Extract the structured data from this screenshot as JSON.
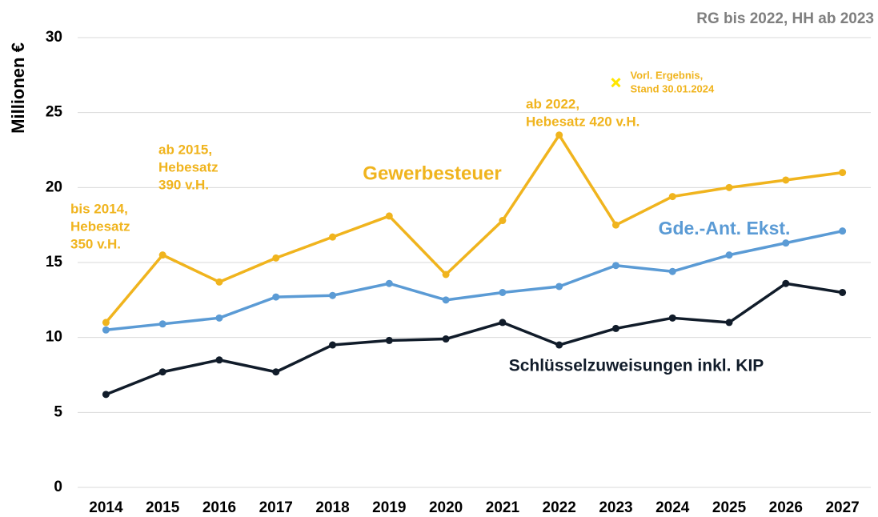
{
  "chart_data": {
    "type": "line",
    "note": "RG bis 2022, HH ab 2023",
    "ylabel": "Millionen €",
    "categories": [
      "2014",
      "2015",
      "2016",
      "2017",
      "2018",
      "2019",
      "2020",
      "2021",
      "2022",
      "2023",
      "2024",
      "2025",
      "2026",
      "2027"
    ],
    "ylim": [
      0,
      30
    ],
    "yticks": [
      0,
      5,
      10,
      15,
      20,
      25,
      30
    ],
    "grid": true,
    "series": [
      {
        "name": "Gewerbesteuer",
        "color": "#f0b41e",
        "values": [
          11.0,
          15.5,
          13.7,
          15.3,
          16.7,
          18.1,
          14.2,
          17.8,
          23.5,
          17.5,
          19.4,
          20.0,
          20.5,
          21.0
        ]
      },
      {
        "name": "Gde.-Ant. Ekst.",
        "color": "#5b9bd5",
        "values": [
          10.5,
          10.9,
          11.3,
          12.7,
          12.8,
          13.6,
          12.5,
          13.0,
          13.4,
          14.8,
          14.4,
          15.5,
          16.3,
          17.1
        ]
      },
      {
        "name": "Schlüsselzuweisungen inkl. KIP",
        "color": "#111c2a",
        "values": [
          6.2,
          7.7,
          8.5,
          7.7,
          9.5,
          9.8,
          9.9,
          11.0,
          9.5,
          10.6,
          11.3,
          11.0,
          13.6,
          13.0
        ]
      },
      {
        "label": [
          "Vorl. Ergebnis,",
          "Stand 30.01.2024"
        ],
        "color": "#ffe600",
        "marker": "x",
        "values": [
          null,
          null,
          null,
          null,
          null,
          null,
          null,
          null,
          null,
          27.0,
          null,
          null,
          null,
          null
        ]
      }
    ],
    "annotations": [
      {
        "lines": [
          "bis 2014,",
          "Hebesatz",
          "350 v.H."
        ],
        "color": "#f0b41e"
      },
      {
        "lines": [
          "ab 2015,",
          "Hebesatz",
          "390 v.H."
        ],
        "color": "#f0b41e"
      },
      {
        "lines": [
          "ab 2022,",
          "Hebesatz 420 v.H."
        ],
        "color": "#f0b41e"
      }
    ]
  }
}
